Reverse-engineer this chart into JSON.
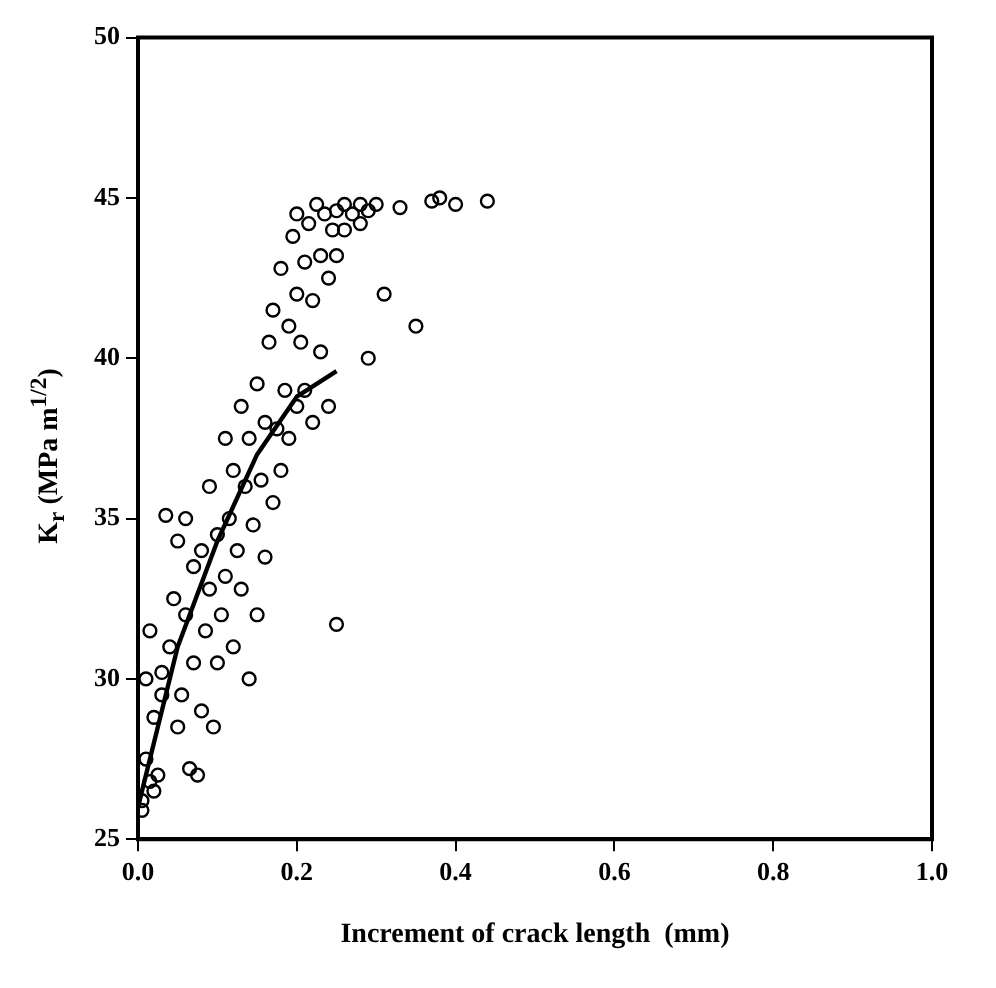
{
  "chart_data": {
    "type": "scatter",
    "xlabel": "Increment of crack length  (mm)",
    "ylabel": "K$_{r}$ (MPa m$^{1/2}$)",
    "xlim": [
      0,
      1
    ],
    "ylim": [
      25,
      50
    ],
    "xticks": [
      {
        "value": 0,
        "label": "0.0"
      },
      {
        "value": 0.2,
        "label": "0.2"
      },
      {
        "value": 0.4,
        "label": "0.4"
      },
      {
        "value": 0.6,
        "label": "0.6"
      },
      {
        "value": 0.8,
        "label": "0.8"
      },
      {
        "value": 1,
        "label": "1.0"
      }
    ],
    "yticks": [
      25,
      30,
      35,
      40,
      45,
      50
    ],
    "grid": false,
    "legend": false,
    "series": [
      {
        "color": "#000000",
        "marker": "circle",
        "x": [
          0.005,
          0.01,
          0.01,
          0.015,
          0.02,
          0.02,
          0.025,
          0.03,
          0.005,
          0.015,
          0.03,
          0.035,
          0.04,
          0.045,
          0.05,
          0.05,
          0.055,
          0.06,
          0.06,
          0.065,
          0.07,
          0.07,
          0.075,
          0.08,
          0.08,
          0.085,
          0.09,
          0.09,
          0.095,
          0.1,
          0.1,
          0.105,
          0.11,
          0.11,
          0.115,
          0.12,
          0.12,
          0.125,
          0.13,
          0.13,
          0.135,
          0.14,
          0.14,
          0.145,
          0.15,
          0.15,
          0.155,
          0.16,
          0.16,
          0.165,
          0.17,
          0.17,
          0.175,
          0.18,
          0.18,
          0.185,
          0.19,
          0.19,
          0.195,
          0.2,
          0.2,
          0.2,
          0.205,
          0.21,
          0.21,
          0.215,
          0.22,
          0.22,
          0.225,
          0.23,
          0.23,
          0.235,
          0.24,
          0.24,
          0.245,
          0.25,
          0.25,
          0.26,
          0.26,
          0.27,
          0.28,
          0.28,
          0.29,
          0.3,
          0.25,
          0.29,
          0.31,
          0.35,
          0.37,
          0.38,
          0.4,
          0.44,
          0.33
        ],
        "values": [
          26.2,
          27.5,
          30,
          31.5,
          26.5,
          28.8,
          27,
          29.5,
          25.9,
          26.8,
          30.2,
          35.1,
          31,
          32.5,
          28.5,
          34.3,
          29.5,
          32,
          35,
          27.2,
          30.5,
          33.5,
          27,
          29,
          34,
          31.5,
          32.8,
          36,
          28.5,
          30.5,
          34.5,
          32,
          33.2,
          37.5,
          35,
          31,
          36.5,
          34,
          32.8,
          38.5,
          36,
          30,
          37.5,
          34.8,
          32,
          39.2,
          36.2,
          33.8,
          38,
          40.5,
          35.5,
          41.5,
          37.8,
          36.5,
          42.8,
          39,
          37.5,
          41,
          43.8,
          38.5,
          42,
          44.5,
          40.5,
          39,
          43,
          44.2,
          38,
          41.8,
          44.8,
          40.2,
          43.2,
          44.5,
          38.5,
          42.5,
          44,
          43.2,
          44.6,
          44,
          44.8,
          44.5,
          44.2,
          44.8,
          44.6,
          44.8,
          31.7,
          40,
          42,
          41,
          44.9,
          45,
          44.8,
          44.9,
          44.7
        ]
      },
      {
        "type": "line",
        "color": "#000000",
        "marker": "none",
        "x": [
          0,
          0.05,
          0.1,
          0.15,
          0.2,
          0.25
        ],
        "values": [
          26,
          31,
          34.3,
          37,
          38.8,
          39.6
        ]
      }
    ]
  }
}
